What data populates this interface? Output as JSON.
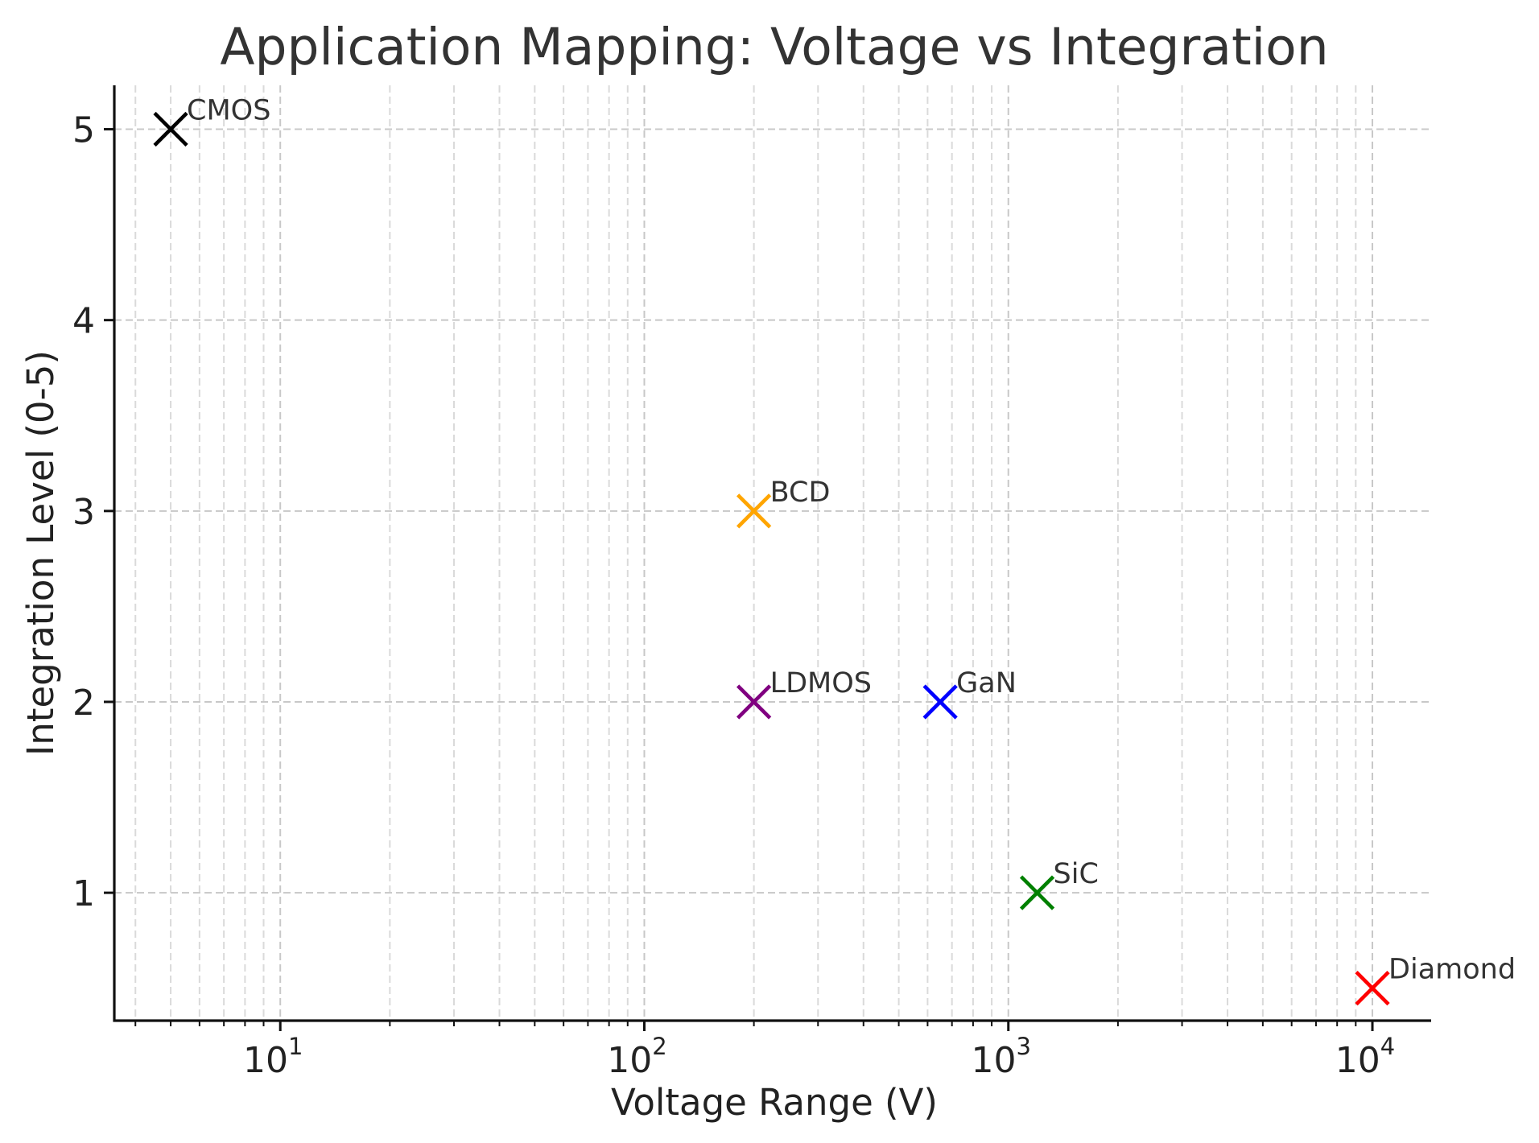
{
  "chart_data": {
    "type": "scatter",
    "title": "Application Mapping: Voltage vs Integration",
    "xlabel": "Voltage Range (V)",
    "ylabel": "Integration Level (0-5)",
    "x_scale": "log",
    "xlim": [
      3.5,
      14500
    ],
    "ylim": [
      0.33,
      5.23
    ],
    "x_ticks": [
      {
        "value": 10,
        "base": "10",
        "exponent": "1"
      },
      {
        "value": 100,
        "base": "10",
        "exponent": "2"
      },
      {
        "value": 1000,
        "base": "10",
        "exponent": "3"
      },
      {
        "value": 10000,
        "base": "10",
        "exponent": "4"
      }
    ],
    "y_ticks": [
      {
        "value": 1,
        "label": "1"
      },
      {
        "value": 2,
        "label": "2"
      },
      {
        "value": 3,
        "label": "3"
      },
      {
        "value": 4,
        "label": "4"
      },
      {
        "value": 5,
        "label": "5"
      }
    ],
    "grid": "both, dashed (major and minor)",
    "marker": "x",
    "points": [
      {
        "label": "CMOS",
        "x": 5,
        "y": 5,
        "color": "#000000"
      },
      {
        "label": "BCD",
        "x": 200,
        "y": 3,
        "color": "#ffa500"
      },
      {
        "label": "LDMOS",
        "x": 200,
        "y": 2,
        "color": "#800080"
      },
      {
        "label": "GaN",
        "x": 650,
        "y": 2,
        "color": "#0000ff"
      },
      {
        "label": "SiC",
        "x": 1200,
        "y": 1,
        "color": "#008000"
      },
      {
        "label": "Diamond",
        "x": 10000,
        "y": 0.5,
        "color": "#ff0000"
      }
    ]
  }
}
